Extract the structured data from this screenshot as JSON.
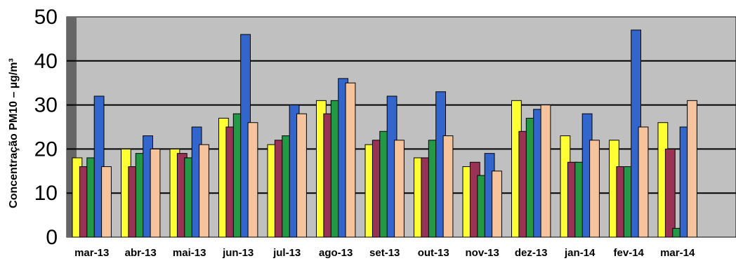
{
  "chart_data": {
    "type": "bar",
    "ylabel": "Concentração PM10 – µg/m³",
    "ylim": [
      0,
      50
    ],
    "yticks": [
      0,
      10,
      20,
      30,
      40,
      50
    ],
    "grid": true,
    "categories": [
      "mar-13",
      "abr-13",
      "mai-13",
      "jun-13",
      "jul-13",
      "ago-13",
      "set-13",
      "out-13",
      "nov-13",
      "dez-13",
      "jan-14",
      "fev-14",
      "mar-14"
    ],
    "series": [
      {
        "color": "#ffff33",
        "values": [
          18,
          20,
          20,
          27,
          21,
          31,
          21,
          18,
          16,
          31,
          23,
          22,
          26
        ]
      },
      {
        "color": "#993355",
        "values": [
          16,
          16,
          19,
          25,
          22,
          28,
          22,
          18,
          17,
          24,
          17,
          16,
          20
        ]
      },
      {
        "color": "#229944",
        "values": [
          18,
          19,
          18,
          28,
          23,
          31,
          24,
          22,
          14,
          27,
          17,
          16,
          2
        ]
      },
      {
        "color": "#3366cc",
        "values": [
          32,
          23,
          25,
          46,
          30,
          36,
          32,
          33,
          19,
          29,
          28,
          47,
          25
        ]
      },
      {
        "color": "#f5c49c",
        "values": [
          16,
          20,
          21,
          26,
          28,
          35,
          22,
          23,
          15,
          30,
          22,
          25,
          31
        ]
      }
    ],
    "plot_bg": "#c0c0c0"
  }
}
